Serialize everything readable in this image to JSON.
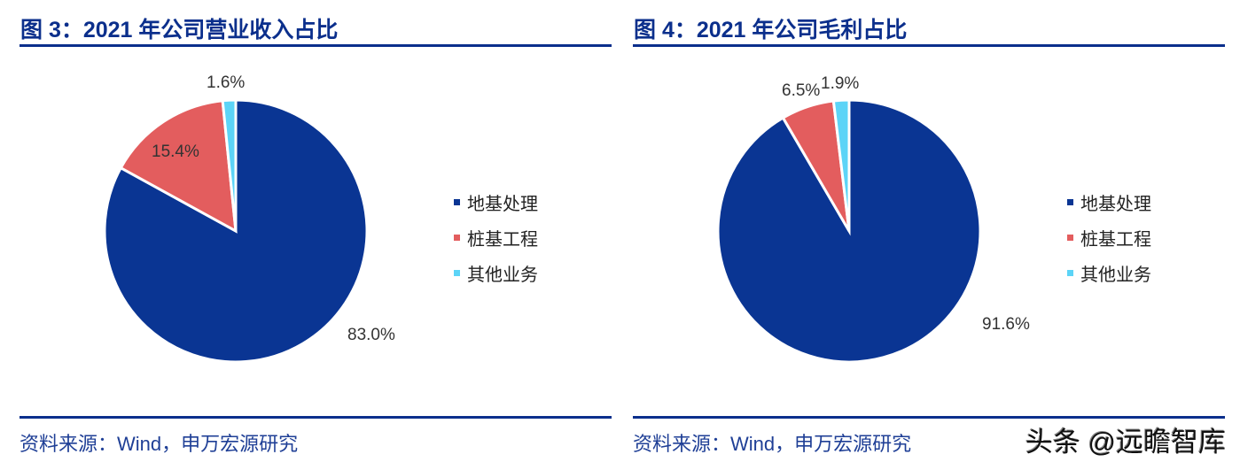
{
  "chart_data": [
    {
      "type": "pie",
      "title": "图 3：2021 年公司营业收入占比",
      "categories": [
        "地基处理",
        "桩基工程",
        "其他业务"
      ],
      "values": [
        83.0,
        15.4,
        1.6
      ],
      "data_labels": [
        "83.0%",
        "15.4%",
        "1.6%"
      ],
      "colors": [
        "#0A3593",
        "#E35D5E",
        "#5CD4F7"
      ],
      "legend": "right",
      "source": "资料来源：Wind，申万宏源研究"
    },
    {
      "type": "pie",
      "title": "图 4：2021 年公司毛利占比",
      "categories": [
        "地基处理",
        "桩基工程",
        "其他业务"
      ],
      "values": [
        91.6,
        6.5,
        1.9
      ],
      "data_labels": [
        "91.6%",
        "6.5%",
        "1.9%"
      ],
      "colors": [
        "#0A3593",
        "#E35D5E",
        "#5CD4F7"
      ],
      "legend": "right",
      "source": "资料来源：Wind，申万宏源研究"
    }
  ],
  "watermark": "头条 @远瞻智库"
}
